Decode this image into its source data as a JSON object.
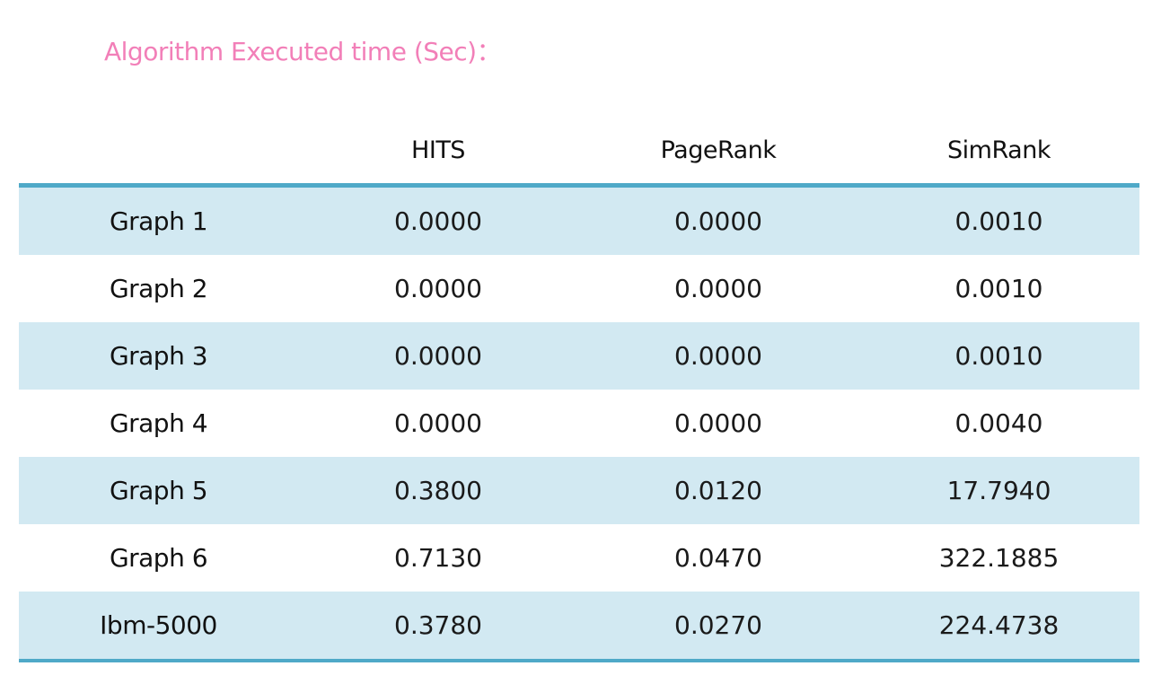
{
  "title": "Algorithm Executed time (Sec)：",
  "table": {
    "headers": [
      "",
      "HITS",
      "PageRank",
      "SimRank"
    ],
    "rows": [
      {
        "label": "Graph 1",
        "values": [
          "0.0000",
          "0.0000",
          "0.0010"
        ]
      },
      {
        "label": "Graph 2",
        "values": [
          "0.0000",
          "0.0000",
          "0.0010"
        ]
      },
      {
        "label": "Graph 3",
        "values": [
          "0.0000",
          "0.0000",
          "0.0010"
        ]
      },
      {
        "label": "Graph 4",
        "values": [
          "0.0000",
          "0.0000",
          "0.0040"
        ]
      },
      {
        "label": "Graph 5",
        "values": [
          "0.3800",
          "0.0120",
          "17.7940"
        ]
      },
      {
        "label": "Graph 6",
        "values": [
          "0.7130",
          "0.0470",
          "322.1885"
        ]
      },
      {
        "label": "Ibm-5000",
        "values": [
          "0.3780",
          "0.0270",
          "224.4738"
        ]
      }
    ]
  },
  "colors": {
    "title": "#f27fb8",
    "accent_border": "#4fa9c8",
    "stripe": "#d2e9f2"
  }
}
